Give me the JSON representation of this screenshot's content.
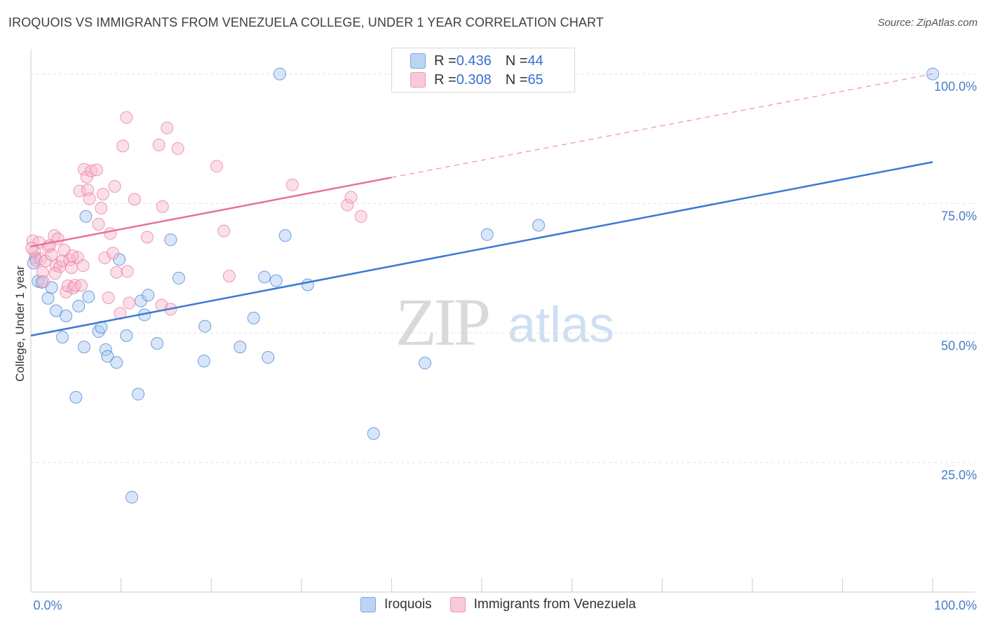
{
  "header": {
    "title": "IROQUOIS VS IMMIGRANTS FROM VENEZUELA COLLEGE, UNDER 1 YEAR CORRELATION CHART",
    "source": "Source: ZipAtlas.com"
  },
  "watermark": {
    "zip": "ZIP",
    "atlas": "atlas"
  },
  "legend_top": {
    "rows": [
      {
        "r_label": "R = ",
        "r_value": "0.436",
        "n_label": "N = ",
        "n_value": "44",
        "color": "#a9c8f0"
      },
      {
        "r_label": "R = ",
        "r_value": "0.308",
        "n_label": "N = ",
        "n_value": "65",
        "color": "#f7b7cb"
      }
    ]
  },
  "legend_bottom": {
    "items": [
      {
        "label": "Iroquois",
        "color": "#a9c8f0"
      },
      {
        "label": "Immigrants from Venezuela",
        "color": "#f7b7cb"
      }
    ]
  },
  "chart_data": {
    "type": "scatter",
    "title": "IROQUOIS VS IMMIGRANTS FROM VENEZUELA COLLEGE, UNDER 1 YEAR CORRELATION CHART",
    "xlabel": "",
    "ylabel": "College, Under 1 year",
    "xlim": [
      0,
      100
    ],
    "ylim": [
      0,
      104
    ],
    "x_tick_labels": [
      "0.0%",
      "100.0%"
    ],
    "y_ticks": [
      25,
      50,
      75,
      100
    ],
    "y_tick_labels": [
      "25.0%",
      "50.0%",
      "75.0%",
      "100.0%"
    ],
    "grid": true,
    "series": [
      {
        "name": "Iroquois",
        "color": "#3a78d4",
        "fill": "#a9c8f0",
        "trend": {
          "x0": 0,
          "y0": 49.5,
          "x1": 100,
          "y1": 83.0,
          "dashed_from": null
        },
        "points": [
          [
            0.5,
            64.5
          ],
          [
            0.8,
            60.0
          ],
          [
            1.2,
            59.8
          ],
          [
            1.9,
            56.7
          ],
          [
            2.3,
            58.8
          ],
          [
            2.8,
            54.3
          ],
          [
            3.5,
            49.2
          ],
          [
            3.9,
            53.3
          ],
          [
            5.3,
            55.2
          ],
          [
            5.9,
            47.3
          ],
          [
            6.4,
            57.0
          ],
          [
            7.5,
            50.3
          ],
          [
            7.8,
            51.1
          ],
          [
            8.3,
            46.8
          ],
          [
            8.5,
            45.5
          ],
          [
            9.5,
            44.3
          ],
          [
            9.8,
            64.2
          ],
          [
            10.6,
            49.5
          ],
          [
            11.9,
            38.2
          ],
          [
            12.2,
            56.2
          ],
          [
            12.6,
            53.5
          ],
          [
            13.0,
            57.3
          ],
          [
            14.0,
            48.0
          ],
          [
            15.5,
            68.0
          ],
          [
            16.4,
            60.6
          ],
          [
            19.2,
            44.6
          ],
          [
            19.3,
            51.3
          ],
          [
            23.2,
            47.3
          ],
          [
            24.7,
            52.9
          ],
          [
            25.9,
            60.8
          ],
          [
            26.3,
            45.3
          ],
          [
            27.2,
            60.1
          ],
          [
            27.6,
            100.0
          ],
          [
            28.2,
            68.8
          ],
          [
            30.7,
            59.3
          ],
          [
            38.0,
            30.6
          ],
          [
            43.7,
            44.2
          ],
          [
            50.6,
            69.0
          ],
          [
            56.3,
            70.8
          ],
          [
            100.0,
            100.0
          ],
          [
            5.0,
            37.6
          ],
          [
            11.2,
            18.3
          ],
          [
            6.1,
            72.5
          ],
          [
            0.3,
            63.5
          ]
        ]
      },
      {
        "name": "Immigrants from Venezuela",
        "color": "#e8709a",
        "fill": "#f7b7cb",
        "trend": {
          "x0": 0,
          "y0": 66.7,
          "x1": 100,
          "y1": 100.0,
          "dashed_from": 40
        },
        "points": [
          [
            0.2,
            67.8
          ],
          [
            0.4,
            65.8
          ],
          [
            0.6,
            64.0
          ],
          [
            0.9,
            67.5
          ],
          [
            1.1,
            64.3
          ],
          [
            1.3,
            61.7
          ],
          [
            1.6,
            63.9
          ],
          [
            1.9,
            66.6
          ],
          [
            2.1,
            66.9
          ],
          [
            2.3,
            65.1
          ],
          [
            2.6,
            68.8
          ],
          [
            2.8,
            63.0
          ],
          [
            3.0,
            68.2
          ],
          [
            3.2,
            62.8
          ],
          [
            3.5,
            63.9
          ],
          [
            3.7,
            66.0
          ],
          [
            3.9,
            57.9
          ],
          [
            4.1,
            59.1
          ],
          [
            4.3,
            64.1
          ],
          [
            4.5,
            62.6
          ],
          [
            4.7,
            58.7
          ],
          [
            4.9,
            59.2
          ],
          [
            5.2,
            64.6
          ],
          [
            5.4,
            77.4
          ],
          [
            5.6,
            59.2
          ],
          [
            5.8,
            63.0
          ],
          [
            5.9,
            81.6
          ],
          [
            6.2,
            80.1
          ],
          [
            6.3,
            77.6
          ],
          [
            6.5,
            75.9
          ],
          [
            6.7,
            81.3
          ],
          [
            7.3,
            81.5
          ],
          [
            7.5,
            71.0
          ],
          [
            7.8,
            74.1
          ],
          [
            8.0,
            76.8
          ],
          [
            8.2,
            64.5
          ],
          [
            8.6,
            56.8
          ],
          [
            8.8,
            69.2
          ],
          [
            9.1,
            65.4
          ],
          [
            9.3,
            78.3
          ],
          [
            9.5,
            61.7
          ],
          [
            9.9,
            53.8
          ],
          [
            10.2,
            86.1
          ],
          [
            10.6,
            91.6
          ],
          [
            10.7,
            61.9
          ],
          [
            10.9,
            55.8
          ],
          [
            11.5,
            75.8
          ],
          [
            12.9,
            68.5
          ],
          [
            14.2,
            86.3
          ],
          [
            14.5,
            55.4
          ],
          [
            14.6,
            74.4
          ],
          [
            15.1,
            89.6
          ],
          [
            15.5,
            54.6
          ],
          [
            16.3,
            85.6
          ],
          [
            20.6,
            82.2
          ],
          [
            21.4,
            69.7
          ],
          [
            22.0,
            61.0
          ],
          [
            29.0,
            78.6
          ],
          [
            35.1,
            74.7
          ],
          [
            35.5,
            76.2
          ],
          [
            36.6,
            72.5
          ],
          [
            0.1,
            66.4
          ],
          [
            1.4,
            59.9
          ],
          [
            2.7,
            61.5
          ],
          [
            4.6,
            64.9
          ]
        ]
      }
    ]
  }
}
